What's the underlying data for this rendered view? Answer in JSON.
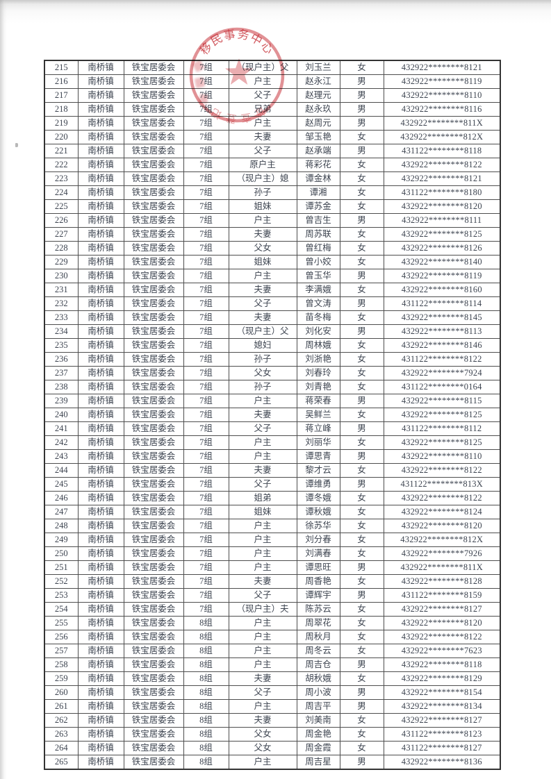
{
  "stamp": {
    "arc_text_top": "移民事务中心",
    "arc_text_bottom": "普查登记",
    "color": "#c8363e"
  },
  "table": {
    "column_keys": [
      "seq",
      "town",
      "committee",
      "group",
      "relation",
      "name",
      "gender",
      "id-number"
    ],
    "rows": [
      [
        "215",
        "南桥镇",
        "铁宝居委会",
        "7组",
        "（现户主）父",
        "刘玉兰",
        "女",
        "432922********8121"
      ],
      [
        "216",
        "南桥镇",
        "铁宝居委会",
        "7组",
        "户主",
        "赵永江",
        "男",
        "432922********8119"
      ],
      [
        "217",
        "南桥镇",
        "铁宝居委会",
        "7组",
        "父子",
        "赵理元",
        "男",
        "432922********8110"
      ],
      [
        "218",
        "南桥镇",
        "铁宝居委会",
        "7组",
        "兄弟",
        "赵永玖",
        "男",
        "432922********8116"
      ],
      [
        "219",
        "南桥镇",
        "铁宝居委会",
        "7组",
        "户主",
        "赵周元",
        "男",
        "432922********811X"
      ],
      [
        "220",
        "南桥镇",
        "铁宝居委会",
        "7组",
        "夫妻",
        "邹玉艳",
        "女",
        "432922********812X"
      ],
      [
        "221",
        "南桥镇",
        "铁宝居委会",
        "7组",
        "父子",
        "赵承端",
        "男",
        "431122********8118"
      ],
      [
        "222",
        "南桥镇",
        "铁宝居委会",
        "7组",
        "原户主",
        "蒋彩花",
        "女",
        "432922********8122"
      ],
      [
        "223",
        "南桥镇",
        "铁宝居委会",
        "7组",
        "（现户主）媳",
        "谭金林",
        "女",
        "432922********8121"
      ],
      [
        "224",
        "南桥镇",
        "铁宝居委会",
        "7组",
        "孙子",
        "谭湘",
        "女",
        "431122********8180"
      ],
      [
        "225",
        "南桥镇",
        "铁宝居委会",
        "7组",
        "姐妹",
        "谭苏金",
        "女",
        "432922********8120"
      ],
      [
        "226",
        "南桥镇",
        "铁宝居委会",
        "7组",
        "户主",
        "曾吉生",
        "男",
        "432922********8111"
      ],
      [
        "227",
        "南桥镇",
        "铁宝居委会",
        "7组",
        "夫妻",
        "周苏联",
        "女",
        "432922********8125"
      ],
      [
        "228",
        "南桥镇",
        "铁宝居委会",
        "7组",
        "父女",
        "曾红梅",
        "女",
        "432922********8126"
      ],
      [
        "229",
        "南桥镇",
        "铁宝居委会",
        "7组",
        "姐妹",
        "曾小姣",
        "女",
        "432922********8140"
      ],
      [
        "230",
        "南桥镇",
        "铁宝居委会",
        "7组",
        "户主",
        "曾玉华",
        "男",
        "432922********8119"
      ],
      [
        "231",
        "南桥镇",
        "铁宝居委会",
        "7组",
        "夫妻",
        "李满娥",
        "女",
        "432922********8160"
      ],
      [
        "232",
        "南桥镇",
        "铁宝居委会",
        "7组",
        "父子",
        "曾文涛",
        "男",
        "431122********8114"
      ],
      [
        "233",
        "南桥镇",
        "铁宝居委会",
        "7组",
        "夫妻",
        "苗冬梅",
        "女",
        "432922********8145"
      ],
      [
        "234",
        "南桥镇",
        "铁宝居委会",
        "7组",
        "（现户主）父",
        "刘化安",
        "男",
        "432922********8113"
      ],
      [
        "235",
        "南桥镇",
        "铁宝居委会",
        "7组",
        "媳妇",
        "周林娥",
        "女",
        "432922********8146"
      ],
      [
        "236",
        "南桥镇",
        "铁宝居委会",
        "7组",
        "孙子",
        "刘浙艳",
        "女",
        "431122********8122"
      ],
      [
        "237",
        "南桥镇",
        "铁宝居委会",
        "7组",
        "父女",
        "刘春玲",
        "女",
        "432922********7924"
      ],
      [
        "238",
        "南桥镇",
        "铁宝居委会",
        "7组",
        "孙子",
        "刘青艳",
        "女",
        "431122********0164"
      ],
      [
        "239",
        "南桥镇",
        "铁宝居委会",
        "7组",
        "户主",
        "蒋荣春",
        "男",
        "432922********8115"
      ],
      [
        "240",
        "南桥镇",
        "铁宝居委会",
        "7组",
        "夫妻",
        "吴鲜兰",
        "女",
        "432922********8125"
      ],
      [
        "241",
        "南桥镇",
        "铁宝居委会",
        "7组",
        "父子",
        "蒋立峰",
        "男",
        "431122********8112"
      ],
      [
        "242",
        "南桥镇",
        "铁宝居委会",
        "7组",
        "户主",
        "刘丽华",
        "女",
        "432922********8125"
      ],
      [
        "243",
        "南桥镇",
        "铁宝居委会",
        "7组",
        "户主",
        "谭思青",
        "男",
        "432922********8110"
      ],
      [
        "244",
        "南桥镇",
        "铁宝居委会",
        "7组",
        "夫妻",
        "黎才云",
        "女",
        "432922********8122"
      ],
      [
        "245",
        "南桥镇",
        "铁宝居委会",
        "7组",
        "父子",
        "谭维勇",
        "男",
        "431122********813X"
      ],
      [
        "246",
        "南桥镇",
        "铁宝居委会",
        "7组",
        "姐弟",
        "谭冬娥",
        "女",
        "432922********8122"
      ],
      [
        "247",
        "南桥镇",
        "铁宝居委会",
        "7组",
        "姐妹",
        "谭秋娥",
        "女",
        "432922********8124"
      ],
      [
        "248",
        "南桥镇",
        "铁宝居委会",
        "7组",
        "户主",
        "徐苏华",
        "女",
        "432922********8120"
      ],
      [
        "249",
        "南桥镇",
        "铁宝居委会",
        "7组",
        "户主",
        "刘分春",
        "女",
        "432922********812X"
      ],
      [
        "250",
        "南桥镇",
        "铁宝居委会",
        "7组",
        "户主",
        "刘满春",
        "女",
        "432922********7926"
      ],
      [
        "251",
        "南桥镇",
        "铁宝居委会",
        "7组",
        "户主",
        "谭思旺",
        "男",
        "432922********811X"
      ],
      [
        "252",
        "南桥镇",
        "铁宝居委会",
        "7组",
        "夫妻",
        "周香艳",
        "女",
        "432922********8128"
      ],
      [
        "253",
        "南桥镇",
        "铁宝居委会",
        "7组",
        "父子",
        "谭辉宇",
        "男",
        "431122********8159"
      ],
      [
        "254",
        "南桥镇",
        "铁宝居委会",
        "7组",
        "（现户主）夫",
        "陈苏云",
        "女",
        "432922********8127"
      ],
      [
        "255",
        "南桥镇",
        "铁宝居委会",
        "8组",
        "户主",
        "周翠花",
        "女",
        "432922********8120"
      ],
      [
        "256",
        "南桥镇",
        "铁宝居委会",
        "8组",
        "户主",
        "周秋月",
        "女",
        "432922********8122"
      ],
      [
        "257",
        "南桥镇",
        "铁宝居委会",
        "8组",
        "户主",
        "周冬云",
        "女",
        "432922********7623"
      ],
      [
        "258",
        "南桥镇",
        "铁宝居委会",
        "8组",
        "户主",
        "周吉仓",
        "男",
        "432922********8118"
      ],
      [
        "259",
        "南桥镇",
        "铁宝居委会",
        "8组",
        "夫妻",
        "胡秋娥",
        "女",
        "432922********8129"
      ],
      [
        "260",
        "南桥镇",
        "铁宝居委会",
        "8组",
        "父子",
        "周小波",
        "男",
        "432922********8154"
      ],
      [
        "261",
        "南桥镇",
        "铁宝居委会",
        "8组",
        "户主",
        "周吉平",
        "男",
        "432922********8134"
      ],
      [
        "262",
        "南桥镇",
        "铁宝居委会",
        "8组",
        "夫妻",
        "刘美南",
        "女",
        "432922********8127"
      ],
      [
        "263",
        "南桥镇",
        "铁宝居委会",
        "8组",
        "父女",
        "周金艳",
        "女",
        "431122********8123"
      ],
      [
        "264",
        "南桥镇",
        "铁宝居委会",
        "8组",
        "父女",
        "周金霞",
        "女",
        "431122********8127"
      ],
      [
        "265",
        "南桥镇",
        "铁宝居委会",
        "8组",
        "户主",
        "周吉星",
        "男",
        "432922********8136"
      ]
    ]
  }
}
